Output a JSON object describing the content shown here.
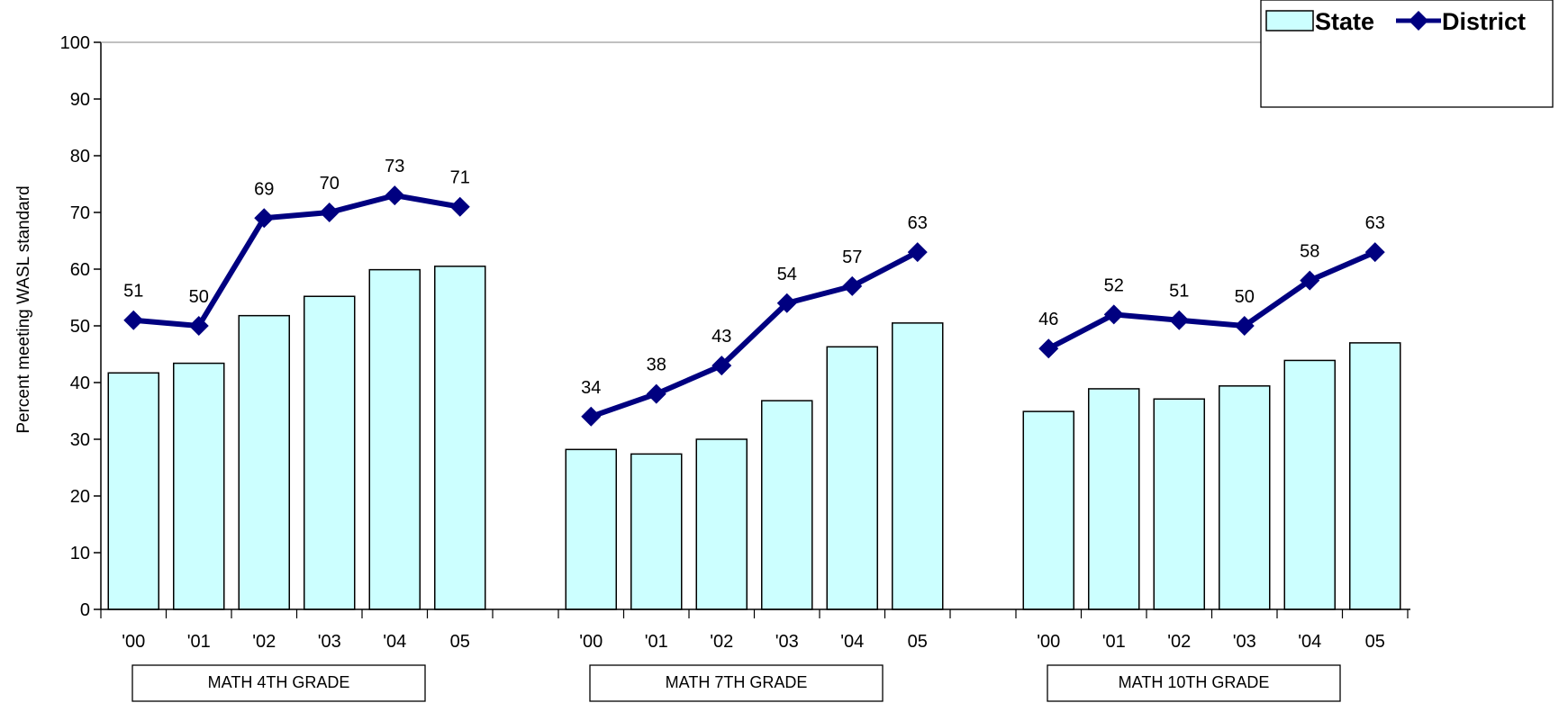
{
  "chart_data": {
    "type": "bar",
    "ylabel": "Percent meeting WASL standard",
    "ylim": [
      0,
      100
    ],
    "yticks": [
      0,
      10,
      20,
      30,
      40,
      50,
      60,
      70,
      80,
      90,
      100
    ],
    "legend_position": "top-right",
    "colors": {
      "state_fill": "#ccffff",
      "district_line": "#000080",
      "axis": "#000000"
    },
    "groups": [
      {
        "label": "MATH 4TH GRADE",
        "categories": [
          "'00",
          "'01",
          "'02",
          "'03",
          "'04",
          "05"
        ],
        "series": [
          {
            "name": "State",
            "type": "bar",
            "values": [
              41.7,
              43.4,
              51.8,
              55.2,
              59.9,
              60.5
            ]
          },
          {
            "name": "District",
            "type": "line",
            "values": [
              51,
              50,
              69,
              70,
              73,
              71
            ],
            "data_labels": [
              "51",
              "50",
              "69",
              "70",
              "73",
              "71"
            ]
          }
        ]
      },
      {
        "label": "MATH 7TH GRADE",
        "categories": [
          "'00",
          "'01",
          "'02",
          "'03",
          "'04",
          "05"
        ],
        "series": [
          {
            "name": "State",
            "type": "bar",
            "values": [
              28.2,
              27.4,
              30.0,
              36.8,
              46.3,
              50.5
            ]
          },
          {
            "name": "District",
            "type": "line",
            "values": [
              34,
              38,
              43,
              54,
              57,
              63
            ],
            "data_labels": [
              "34",
              "38",
              "43",
              "54",
              "57",
              "63"
            ]
          }
        ]
      },
      {
        "label": "MATH 10TH GRADE",
        "categories": [
          "'00",
          "'01",
          "'02",
          "'03",
          "'04",
          "05"
        ],
        "series": [
          {
            "name": "State",
            "type": "bar",
            "values": [
              34.9,
              38.9,
              37.1,
              39.4,
              43.9,
              47.0
            ]
          },
          {
            "name": "District",
            "type": "line",
            "values": [
              46,
              52,
              51,
              50,
              58,
              63
            ],
            "data_labels": [
              "46",
              "52",
              "51",
              "50",
              "58",
              "63"
            ]
          }
        ]
      }
    ],
    "legend": [
      {
        "name": "State",
        "marker": "bar"
      },
      {
        "name": "District",
        "marker": "line-diamond"
      }
    ]
  }
}
